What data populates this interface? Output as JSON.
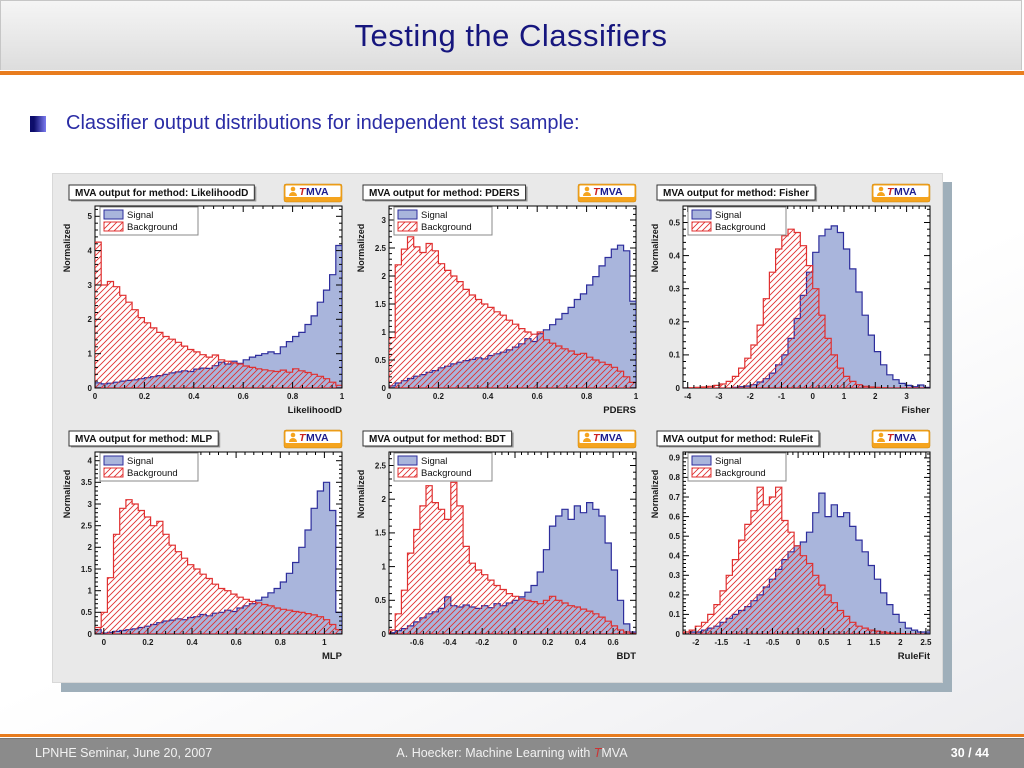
{
  "title": "Testing the Classifiers",
  "bullet": {
    "text": "Classifier output distributions for independent test sample:"
  },
  "footer": {
    "left": "LPNHE Seminar, June 20, 2007",
    "center_prefix": "A. Hoecker: Machine Learning with ",
    "center_t": "T",
    "center_suffix": "MVA",
    "page": "30 / 44"
  },
  "logo": {
    "t": "T",
    "rest": "MVA"
  },
  "legend": {
    "signal": "Signal",
    "background": "Background"
  },
  "colors": {
    "accent_orange": "#e87c1e",
    "title_navy": "#16167e",
    "signal_fill": "#a9b5dc",
    "signal_line": "#2d2d9c",
    "background_line": "#e03030",
    "panel_shadow": "#9fafba",
    "frame_bg": "#ffffff",
    "logo_orange": "#f5a41e",
    "logo_navy": "#1b1b8e",
    "logo_red": "#cc2222"
  },
  "chart_data": [
    {
      "id": "likelihoodd",
      "type": "histogram",
      "header": "MVA output for method: LikelihoodD",
      "xlabel": "LikelihoodD",
      "ylabel": "Normalized",
      "xrange": [
        0,
        1
      ],
      "yrange": [
        0,
        5.3
      ],
      "xticks": [
        0,
        0.2,
        0.4,
        0.6,
        0.8,
        1
      ],
      "xtick_labels": [
        "0",
        "0.2",
        "0.4",
        "0.6",
        "0.8",
        "1"
      ],
      "yticks": [
        0,
        1,
        2,
        3,
        4,
        5
      ],
      "ytick_labels": [
        "0",
        "1",
        "2",
        "3",
        "4",
        "5"
      ],
      "series": [
        {
          "name": "Signal",
          "values": [
            0.15,
            0.12,
            0.14,
            0.17,
            0.2,
            0.22,
            0.24,
            0.27,
            0.3,
            0.33,
            0.36,
            0.4,
            0.44,
            0.47,
            0.5,
            0.48,
            0.55,
            0.58,
            0.57,
            0.65,
            0.75,
            0.7,
            0.78,
            0.72,
            0.82,
            0.9,
            0.95,
            1.0,
            1.05,
            1.0,
            1.2,
            1.35,
            1.5,
            1.62,
            1.85,
            2.1,
            2.5,
            2.85,
            3.3,
            4.15
          ]
        },
        {
          "name": "Background",
          "values": [
            4.25,
            3.0,
            3.1,
            2.95,
            2.7,
            2.5,
            2.28,
            2.05,
            1.9,
            1.75,
            1.62,
            1.5,
            1.42,
            1.33,
            1.22,
            1.12,
            1.05,
            0.97,
            0.9,
            0.96,
            0.82,
            0.78,
            0.73,
            0.7,
            0.64,
            0.6,
            0.56,
            0.53,
            0.5,
            0.48,
            0.52,
            0.46,
            0.56,
            0.5,
            0.45,
            0.4,
            0.34,
            0.27,
            0.17,
            0.08
          ]
        }
      ]
    },
    {
      "id": "pders",
      "type": "histogram",
      "header": "MVA output for method: PDERS",
      "xlabel": "PDERS",
      "ylabel": "Normalized",
      "xrange": [
        0,
        1
      ],
      "yrange": [
        0,
        3.25
      ],
      "xticks": [
        0,
        0.2,
        0.4,
        0.6,
        0.8,
        1
      ],
      "xtick_labels": [
        "0",
        "0.2",
        "0.4",
        "0.6",
        "0.8",
        "1"
      ],
      "yticks": [
        0,
        0.5,
        1,
        1.5,
        2,
        2.5,
        3
      ],
      "ytick_labels": [
        "0",
        "0.5",
        "1",
        "1.5",
        "2",
        "2.5",
        "3"
      ],
      "series": [
        {
          "name": "Signal",
          "values": [
            0.04,
            0.09,
            0.13,
            0.17,
            0.21,
            0.24,
            0.28,
            0.31,
            0.36,
            0.39,
            0.43,
            0.46,
            0.49,
            0.51,
            0.54,
            0.52,
            0.58,
            0.61,
            0.64,
            0.68,
            0.73,
            0.79,
            0.88,
            0.83,
            0.97,
            1.04,
            1.13,
            1.23,
            1.33,
            1.44,
            1.58,
            1.68,
            1.84,
            1.99,
            2.18,
            2.33,
            2.48,
            2.55,
            2.45,
            1.55
          ]
        },
        {
          "name": "Background",
          "values": [
            0.9,
            2.2,
            2.48,
            2.7,
            2.52,
            2.42,
            2.58,
            2.45,
            2.22,
            2.1,
            2.0,
            1.9,
            1.76,
            1.66,
            1.58,
            1.5,
            1.44,
            1.36,
            1.3,
            1.21,
            1.14,
            1.06,
            1.0,
            0.96,
            1.0,
            0.86,
            0.8,
            0.75,
            0.7,
            0.66,
            0.6,
            0.62,
            0.55,
            0.5,
            0.46,
            0.42,
            0.37,
            0.3,
            0.2,
            0.1
          ]
        }
      ]
    },
    {
      "id": "fisher",
      "type": "histogram",
      "header": "MVA output for method: Fisher",
      "xlabel": "Fisher",
      "ylabel": "Normalized",
      "xrange": [
        -4.15,
        3.75
      ],
      "yrange": [
        0,
        0.55
      ],
      "xticks": [
        -4,
        -3,
        -2,
        -1,
        0,
        1,
        2,
        3
      ],
      "xtick_labels": [
        "-4",
        "-3",
        "-2",
        "-1",
        "0",
        "1",
        "2",
        "3"
      ],
      "yticks": [
        0,
        0.1,
        0.2,
        0.3,
        0.4,
        0.5
      ],
      "ytick_labels": [
        "0",
        "0.1",
        "0.2",
        "0.3",
        "0.4",
        "0.5"
      ],
      "series": [
        {
          "name": "Signal",
          "values": [
            0,
            0,
            0,
            0,
            0,
            0,
            0,
            0,
            0.002,
            0.004,
            0.006,
            0.01,
            0.018,
            0.028,
            0.045,
            0.07,
            0.1,
            0.15,
            0.21,
            0.28,
            0.35,
            0.41,
            0.46,
            0.48,
            0.49,
            0.47,
            0.42,
            0.36,
            0.29,
            0.22,
            0.16,
            0.11,
            0.07,
            0.04,
            0.025,
            0.014,
            0.008,
            0.004,
            0.009,
            0.002
          ]
        },
        {
          "name": "Background",
          "values": [
            0,
            0.001,
            0.002,
            0.003,
            0.005,
            0.008,
            0.012,
            0.02,
            0.035,
            0.06,
            0.09,
            0.13,
            0.19,
            0.27,
            0.35,
            0.42,
            0.46,
            0.48,
            0.47,
            0.43,
            0.37,
            0.3,
            0.22,
            0.15,
            0.1,
            0.06,
            0.035,
            0.02,
            0.01,
            0.005,
            0.003,
            0.002,
            0.001,
            0,
            0,
            0,
            0,
            0,
            0,
            0
          ]
        }
      ]
    },
    {
      "id": "mlp",
      "type": "histogram",
      "header": "MVA output for method: MLP",
      "xlabel": "MLP",
      "ylabel": "Normalized",
      "xrange": [
        -0.04,
        1.08
      ],
      "yrange": [
        0,
        4.2
      ],
      "xticks": [
        0,
        0.2,
        0.4,
        0.6,
        0.8,
        1
      ],
      "xtick_labels": [
        "0",
        "0.2",
        "0.4",
        "0.6",
        "0.8",
        "1"
      ],
      "yticks": [
        0,
        0.5,
        1,
        1.5,
        2,
        2.5,
        3,
        3.5,
        4
      ],
      "ytick_labels": [
        "0",
        "0.5",
        "1",
        "1.5",
        "2",
        "2.5",
        "3",
        "3.5",
        "4"
      ],
      "series": [
        {
          "name": "Signal",
          "values": [
            0.1,
            0.02,
            0.04,
            0.06,
            0.08,
            0.1,
            0.12,
            0.15,
            0.18,
            0.22,
            0.26,
            0.3,
            0.32,
            0.35,
            0.33,
            0.38,
            0.4,
            0.45,
            0.42,
            0.48,
            0.5,
            0.55,
            0.52,
            0.6,
            0.65,
            0.7,
            0.78,
            0.85,
            0.95,
            1.05,
            1.2,
            1.4,
            1.65,
            2.0,
            2.4,
            2.9,
            3.3,
            3.5,
            2.85,
            0.5
          ]
        },
        {
          "name": "Background",
          "values": [
            0.15,
            0.5,
            1.3,
            2.3,
            2.9,
            3.1,
            3.0,
            2.85,
            2.7,
            2.5,
            2.6,
            2.3,
            2.05,
            1.9,
            1.75,
            1.6,
            1.5,
            1.38,
            1.28,
            1.15,
            1.05,
            1.0,
            0.92,
            0.85,
            0.8,
            0.75,
            0.72,
            0.68,
            0.65,
            0.6,
            0.57,
            0.55,
            0.52,
            0.5,
            0.47,
            0.44,
            0.4,
            0.33,
            0.22,
            0.1
          ]
        }
      ]
    },
    {
      "id": "bdt",
      "type": "histogram",
      "header": "MVA output for method: BDT",
      "xlabel": "BDT",
      "ylabel": "Normalized",
      "xrange": [
        -0.77,
        0.74
      ],
      "yrange": [
        0,
        2.7
      ],
      "xticks": [
        -0.6,
        -0.4,
        -0.2,
        0,
        0.2,
        0.4,
        0.6
      ],
      "xtick_labels": [
        "-0.6",
        "-0.4",
        "-0.2",
        "0",
        "0.2",
        "0.4",
        "0.6"
      ],
      "yticks": [
        0,
        0.5,
        1,
        1.5,
        2,
        2.5
      ],
      "ytick_labels": [
        "0",
        "0.5",
        "1",
        "1.5",
        "2",
        "2.5"
      ],
      "series": [
        {
          "name": "Signal",
          "values": [
            0.02,
            0.05,
            0.08,
            0.12,
            0.18,
            0.24,
            0.3,
            0.33,
            0.38,
            0.55,
            0.42,
            0.4,
            0.43,
            0.4,
            0.38,
            0.42,
            0.39,
            0.45,
            0.42,
            0.46,
            0.5,
            0.55,
            0.62,
            0.72,
            0.92,
            1.25,
            1.6,
            1.75,
            1.85,
            1.7,
            1.9,
            1.8,
            1.95,
            1.85,
            1.75,
            1.35,
            0.95,
            0.5,
            0.15,
            0.03
          ]
        },
        {
          "name": "Background",
          "values": [
            0.06,
            0.3,
            0.65,
            1.2,
            1.55,
            1.9,
            2.2,
            1.95,
            1.85,
            1.7,
            2.25,
            1.9,
            1.3,
            1.05,
            0.95,
            0.88,
            0.8,
            0.72,
            0.66,
            0.6,
            0.56,
            0.52,
            0.5,
            0.48,
            0.45,
            0.5,
            0.56,
            0.5,
            0.46,
            0.42,
            0.4,
            0.37,
            0.34,
            0.3,
            0.25,
            0.19,
            0.12,
            0.06,
            0.03,
            0.01
          ]
        }
      ]
    },
    {
      "id": "rulefit",
      "type": "histogram",
      "header": "MVA output for method: RuleFit",
      "xlabel": "RuleFit",
      "ylabel": "Normalized",
      "xrange": [
        -2.25,
        2.58
      ],
      "yrange": [
        0,
        0.93
      ],
      "xticks": [
        -2,
        -1.5,
        -1,
        -0.5,
        0,
        0.5,
        1,
        1.5,
        2,
        2.5
      ],
      "xtick_labels": [
        "-2",
        "-1.5",
        "-1",
        "-0.5",
        "0",
        "0.5",
        "1",
        "1.5",
        "2",
        "2.5"
      ],
      "yticks": [
        0,
        0.1,
        0.2,
        0.3,
        0.4,
        0.5,
        0.6,
        0.7,
        0.8,
        0.9
      ],
      "ytick_labels": [
        "0",
        "0.1",
        "0.2",
        "0.3",
        "0.4",
        "0.5",
        "0.6",
        "0.7",
        "0.8",
        "0.9"
      ],
      "series": [
        {
          "name": "Signal",
          "values": [
            0,
            0.01,
            0.01,
            0.02,
            0.03,
            0.04,
            0.06,
            0.08,
            0.1,
            0.12,
            0.14,
            0.17,
            0.2,
            0.24,
            0.28,
            0.33,
            0.38,
            0.42,
            0.45,
            0.47,
            0.52,
            0.62,
            0.72,
            0.6,
            0.66,
            0.6,
            0.62,
            0.55,
            0.48,
            0.42,
            0.35,
            0.28,
            0.21,
            0.15,
            0.1,
            0.06,
            0.03,
            0.02,
            0.01,
            0.01
          ]
        },
        {
          "name": "Background",
          "values": [
            0.01,
            0.02,
            0.04,
            0.06,
            0.1,
            0.15,
            0.22,
            0.3,
            0.38,
            0.48,
            0.56,
            0.63,
            0.75,
            0.66,
            0.7,
            0.75,
            0.58,
            0.52,
            0.45,
            0.4,
            0.36,
            0.3,
            0.25,
            0.2,
            0.16,
            0.12,
            0.09,
            0.06,
            0.04,
            0.03,
            0.02,
            0.015,
            0.01,
            0.005,
            0.003,
            0.002,
            0.001,
            0,
            0,
            0
          ]
        }
      ]
    }
  ]
}
